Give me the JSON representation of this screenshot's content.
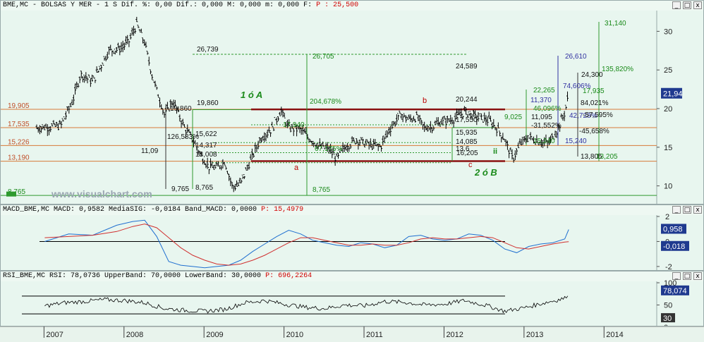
{
  "main": {
    "header": {
      "text": "BME,MC - BOLSAS Y MER - 1 S Dif. %: 0,00 Dif.: 0,000 M: 0,000 m: 0,000 F:",
      "price": "P : 25,500"
    },
    "watermark": "www.visualchart.com",
    "buttons": [
      "_",
      "□",
      "x"
    ],
    "current_price_label": "21,94"
  },
  "macd": {
    "header": {
      "text": "MACD_BME,MC MACD: 0,9582 MediaSIG: -0,0184 Band_MACD: 0,0000",
      "price": "P: 15,4979"
    },
    "value_labels": [
      "0,958",
      "-0,018"
    ]
  },
  "rsi": {
    "header": {
      "text": "RSI_BME,MC RSI: 78,0736 UpperBand: 70,0000 LowerBand: 30,0000",
      "price": "P: 696,2264"
    },
    "value_labels": [
      "78,074",
      "30"
    ]
  },
  "chart_data": [
    {
      "type": "bar",
      "series_kind": "ohlc",
      "x_ticks": [
        "2007",
        "2008",
        "2009",
        "2010",
        "2011",
        "2012",
        "2013",
        "2014"
      ],
      "y_ticks": [
        10,
        15,
        20,
        25,
        30
      ],
      "ylim": [
        7.5,
        32.5
      ],
      "price_points": [
        [
          2006.9,
          17.5
        ],
        [
          2007.2,
          17.8
        ],
        [
          2007.35,
          21
        ],
        [
          2007.45,
          24.5
        ],
        [
          2007.6,
          23.5
        ],
        [
          2007.8,
          27.5
        ],
        [
          2007.95,
          27.8
        ],
        [
          2008.05,
          28.7
        ],
        [
          2008.15,
          30.9
        ],
        [
          2008.25,
          28.5
        ],
        [
          2008.35,
          24
        ],
        [
          2008.5,
          19.2
        ],
        [
          2008.6,
          21
        ],
        [
          2008.75,
          17.5
        ],
        [
          2008.85,
          16
        ],
        [
          2008.95,
          14
        ],
        [
          2009.05,
          12.5
        ],
        [
          2009.15,
          12.3
        ],
        [
          2009.25,
          13.2
        ],
        [
          2009.3,
          11.5
        ],
        [
          2009.35,
          9.8
        ],
        [
          2009.45,
          10.3
        ],
        [
          2009.55,
          12.8
        ],
        [
          2009.7,
          16.2
        ],
        [
          2009.85,
          17.5
        ],
        [
          2009.95,
          19.8
        ],
        [
          2010.05,
          17.5
        ],
        [
          2010.2,
          17.3
        ],
        [
          2010.3,
          16.2
        ],
        [
          2010.45,
          15
        ],
        [
          2010.55,
          14.8
        ],
        [
          2010.65,
          13.5
        ],
        [
          2010.75,
          15
        ],
        [
          2010.9,
          16
        ],
        [
          2011.0,
          15.5
        ],
        [
          2011.1,
          15.2
        ],
        [
          2011.2,
          15.1
        ],
        [
          2011.3,
          17.2
        ],
        [
          2011.45,
          19.2
        ],
        [
          2011.55,
          18.6
        ],
        [
          2011.65,
          18.9
        ],
        [
          2011.75,
          17.5
        ],
        [
          2011.85,
          17.7
        ],
        [
          2011.95,
          18.3
        ],
        [
          2012.1,
          18.6
        ],
        [
          2012.25,
          19.6
        ],
        [
          2012.4,
          18.9
        ],
        [
          2012.55,
          18.5
        ],
        [
          2012.65,
          17.5
        ],
        [
          2012.75,
          16
        ],
        [
          2012.85,
          13.5
        ],
        [
          2012.95,
          15.5
        ],
        [
          2013.05,
          16.3
        ],
        [
          2013.15,
          15.8
        ],
        [
          2013.3,
          15.5
        ],
        [
          2013.42,
          17.5
        ],
        [
          2013.5,
          19.5
        ],
        [
          2013.55,
          21.94
        ]
      ],
      "horizontal_levels": [
        {
          "value": 19.905,
          "label": "19,905"
        },
        {
          "value": 17.535,
          "label": "17,535"
        },
        {
          "value": 15.226,
          "label": "15,226"
        },
        {
          "value": 13.19,
          "label": "13,190"
        },
        {
          "value": 8.765,
          "label": "8,765"
        }
      ],
      "labels": [
        "26,739",
        "26,705",
        "204,678%",
        "19,860",
        "19,860",
        "126,583%",
        "15,622",
        "14,317",
        "13,008",
        "11,09",
        "9,765",
        "8,765",
        "8,765",
        "17,940",
        "67,175%",
        "17,550",
        "15,935",
        "14,085",
        "13,6",
        "16,205",
        "20,244",
        "24,589",
        "22,265",
        "46,096%",
        "-31,552%",
        "15,240",
        "11,370",
        "11,095",
        "26,610",
        "74,606%",
        "42,728%",
        "15,240",
        "24,300",
        "17,935",
        "-45,658%",
        "13,805",
        "13,205",
        "31,140",
        "135,820%",
        "84,021%",
        "-57,595%",
        "9,025"
      ],
      "annotations": [
        "1 ó A",
        "2 ó B",
        "a",
        "b",
        "c",
        "ii"
      ]
    },
    {
      "type": "line",
      "name": "MACD",
      "y_ticks": [
        2,
        0,
        -2
      ],
      "ylim": [
        -2.4,
        2.0
      ],
      "series": [
        {
          "name": "MACD",
          "x": [
            2007.0,
            2007.3,
            2007.6,
            2007.9,
            2008.1,
            2008.25,
            2008.4,
            2008.55,
            2008.7,
            2008.85,
            2009.0,
            2009.15,
            2009.3,
            2009.45,
            2009.6,
            2009.75,
            2009.9,
            2010.05,
            2010.2,
            2010.35,
            2010.5,
            2010.65,
            2010.8,
            2010.95,
            2011.1,
            2011.25,
            2011.4,
            2011.55,
            2011.7,
            2011.85,
            2012.0,
            2012.15,
            2012.3,
            2012.45,
            2012.6,
            2012.75,
            2012.9,
            2013.05,
            2013.2,
            2013.35,
            2013.5,
            2013.55
          ],
          "y": [
            0,
            0.6,
            0.5,
            1.3,
            1.6,
            1.7,
            0.4,
            -1.6,
            -1.9,
            -2.0,
            -2.1,
            -2.0,
            -1.9,
            -1.5,
            -0.8,
            -0.2,
            0.4,
            0.9,
            0.6,
            0.1,
            -0.1,
            -0.3,
            -0.4,
            -0.1,
            -0.2,
            -0.5,
            -0.3,
            0.4,
            0.5,
            0.2,
            0.1,
            0.2,
            0.6,
            0.5,
            0.1,
            -0.6,
            -0.9,
            -0.4,
            -0.2,
            -0.1,
            0.2,
            0.958
          ]
        },
        {
          "name": "MediaSIG",
          "x": [
            2007.0,
            2007.3,
            2007.6,
            2007.9,
            2008.1,
            2008.25,
            2008.4,
            2008.55,
            2008.7,
            2008.85,
            2009.0,
            2009.15,
            2009.3,
            2009.45,
            2009.6,
            2009.75,
            2009.9,
            2010.05,
            2010.2,
            2010.35,
            2010.5,
            2010.65,
            2010.8,
            2010.95,
            2011.1,
            2011.25,
            2011.4,
            2011.55,
            2011.7,
            2011.85,
            2012.0,
            2012.15,
            2012.3,
            2012.45,
            2012.6,
            2012.75,
            2012.9,
            2013.05,
            2013.2,
            2013.35,
            2013.5,
            2013.55
          ],
          "y": [
            0.3,
            0.4,
            0.5,
            0.8,
            1.2,
            1.4,
            1.1,
            0.3,
            -0.5,
            -1.1,
            -1.5,
            -1.8,
            -1.9,
            -1.8,
            -1.5,
            -1.1,
            -0.6,
            -0.1,
            0.3,
            0.3,
            0.1,
            -0.1,
            -0.3,
            -0.3,
            -0.2,
            -0.3,
            -0.3,
            -0.1,
            0.2,
            0.3,
            0.2,
            0.2,
            0.3,
            0.4,
            0.3,
            -0.1,
            -0.5,
            -0.6,
            -0.4,
            -0.2,
            -0.05,
            -0.018
          ]
        }
      ]
    },
    {
      "type": "line",
      "name": "RSI",
      "y_ticks": [
        100,
        50,
        0
      ],
      "ylim": [
        0,
        100
      ],
      "series": [
        {
          "name": "RSI",
          "x": [
            2007.0,
            2007.25,
            2007.5,
            2007.75,
            2008.0,
            2008.25,
            2008.5,
            2008.75,
            2009.0,
            2009.25,
            2009.5,
            2009.75,
            2010.0,
            2010.25,
            2010.5,
            2010.75,
            2011.0,
            2011.25,
            2011.5,
            2011.75,
            2012.0,
            2012.25,
            2012.5,
            2012.75,
            2013.0,
            2013.25,
            2013.5,
            2013.55
          ],
          "y": [
            48,
            55,
            58,
            62,
            60,
            55,
            42,
            38,
            36,
            40,
            55,
            60,
            52,
            45,
            42,
            50,
            48,
            58,
            56,
            50,
            52,
            60,
            50,
            36,
            44,
            55,
            65,
            78.074
          ]
        }
      ]
    }
  ]
}
